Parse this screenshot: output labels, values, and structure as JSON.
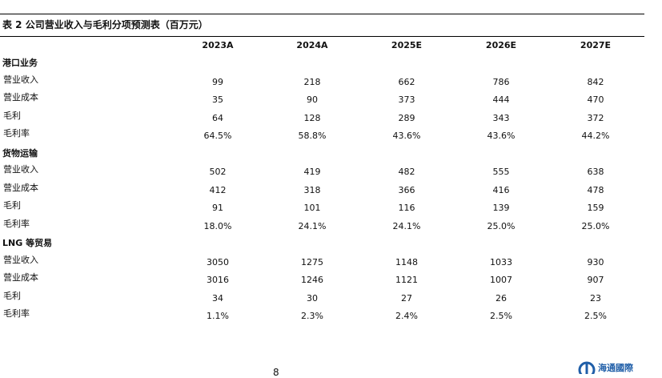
{
  "title": "表 2  公司营业收入与毛利分项预测表（百万元）",
  "columns": [
    "2023A",
    "2024A",
    "2025E",
    "2026E",
    "2027E"
  ],
  "sections": [
    {
      "name": "港口业务",
      "rows": [
        {
          "label": "营业收入",
          "values": [
            99,
            218,
            662,
            786,
            842
          ]
        },
        {
          "label": "营业成本",
          "values": [
            35,
            90,
            373,
            444,
            470
          ]
        },
        {
          "label": "毛利",
          "values": [
            64,
            128,
            289,
            343,
            372
          ]
        },
        {
          "label": "毛利率",
          "values": [
            "64.5%",
            "58.8%",
            "43.6%",
            "43.6%",
            "44.2%"
          ]
        }
      ]
    },
    {
      "name": "货物运输",
      "rows": [
        {
          "label": "营业收入",
          "values": [
            502,
            419,
            482,
            555,
            638
          ]
        },
        {
          "label": "营业成本",
          "values": [
            412,
            318,
            366,
            416,
            478
          ]
        },
        {
          "label": "毛利",
          "values": [
            91,
            101,
            116,
            139,
            159
          ]
        },
        {
          "label": "毛利率",
          "values": [
            "18.0%",
            "24.1%",
            "24.1%",
            "25.0%",
            "25.0%"
          ]
        }
      ]
    },
    {
      "name": "LNG 等贸易",
      "rows": [
        {
          "label": "营业收入",
          "values": [
            3050,
            1275,
            1148,
            1033,
            930
          ]
        },
        {
          "label": "营业成本",
          "values": [
            3016,
            1246,
            1121,
            1007,
            907
          ]
        },
        {
          "label": "毛利",
          "values": [
            34,
            30,
            27,
            26,
            23
          ]
        },
        {
          "label": "毛利率",
          "values": [
            "1.1%",
            "2.3%",
            "2.4%",
            "2.5%",
            "2.5%"
          ]
        }
      ]
    }
  ],
  "footer": {
    "page": "8",
    "logo": "海通國際"
  }
}
